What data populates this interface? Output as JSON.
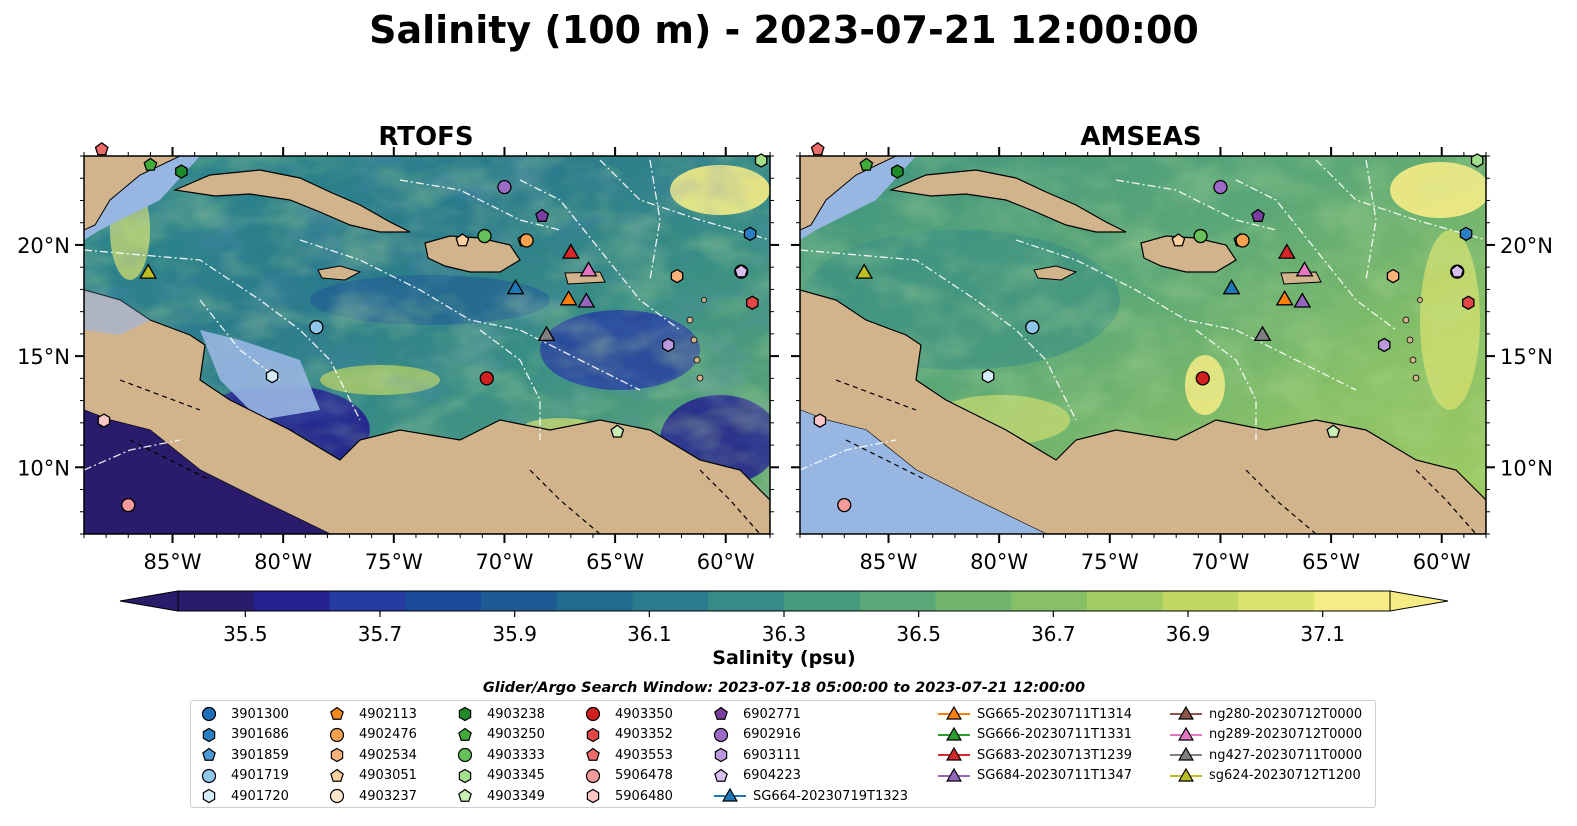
{
  "figure_title": "Salinity (100 m) - 2023-07-21 12:00:00",
  "panels": [
    {
      "title": "RTOFS"
    },
    {
      "title": "AMSEAS"
    }
  ],
  "chart_data": {
    "type": "heatmap",
    "variable": "Salinity",
    "colorbar": {
      "label": "Salinity (psu)",
      "ticks": [
        "35.5",
        "35.7",
        "35.9",
        "36.1",
        "36.3",
        "36.5",
        "36.7",
        "36.9",
        "37.1"
      ],
      "range": [
        35.4,
        37.2
      ],
      "extend": "both",
      "colors": [
        "#2a1b6b",
        "#25218e",
        "#263ba1",
        "#1b4a9a",
        "#1e5b94",
        "#226b8e",
        "#2a7b8b",
        "#368b86",
        "#46997f",
        "#5aa777",
        "#70b46e",
        "#87c067",
        "#a3cc62",
        "#c0d762",
        "#dce36e",
        "#f6ec85"
      ]
    },
    "x_ticks": [
      "85°W",
      "80°W",
      "75°W",
      "70°W",
      "65°W",
      "60°W"
    ],
    "y_ticks": [
      "10°N",
      "15°N",
      "20°N"
    ],
    "lon_range": [
      -89.0,
      -58.0
    ],
    "lat_range": [
      7.0,
      24.0
    ],
    "markers": [
      {
        "id": "3901686",
        "lon": -58.9,
        "lat": 20.5,
        "color": "#2a7fc2",
        "shape": "hexagon"
      },
      {
        "id": "4901719",
        "lon": -78.5,
        "lat": 16.3,
        "color": "#8ec7ea",
        "shape": "circle"
      },
      {
        "id": "4901720",
        "lon": -80.5,
        "lat": 14.1,
        "color": "#d4ecf7",
        "shape": "hexagon"
      },
      {
        "id": "4902113",
        "lon": -69.1,
        "lat": 20.2,
        "color": "#f28a1e",
        "shape": "pentagon"
      },
      {
        "id": "4902476",
        "lon": -69.0,
        "lat": 20.2,
        "color": "#f7a150",
        "shape": "circle"
      },
      {
        "id": "4902534",
        "lon": -62.2,
        "lat": 18.6,
        "color": "#f9b27a",
        "shape": "hexagon"
      },
      {
        "id": "4903051",
        "lon": -71.9,
        "lat": 20.2,
        "color": "#fbcfa0",
        "shape": "pentagon"
      },
      {
        "id": "4903237",
        "lon": -59.3,
        "lat": 18.8,
        "color": "#fde5cc",
        "shape": "circle"
      },
      {
        "id": "4903238",
        "lon": -84.6,
        "lat": 23.3,
        "color": "#1f8a2a",
        "shape": "hexagon"
      },
      {
        "id": "4903250",
        "lon": -86.0,
        "lat": 23.6,
        "color": "#43ab3a",
        "shape": "pentagon"
      },
      {
        "id": "4903333",
        "lon": -70.9,
        "lat": 20.4,
        "color": "#66c15a",
        "shape": "circle"
      },
      {
        "id": "4903345",
        "lon": -58.4,
        "lat": 23.8,
        "color": "#a3e08c",
        "shape": "hexagon"
      },
      {
        "id": "4903349",
        "lon": -64.9,
        "lat": 11.6,
        "color": "#c9f0b7",
        "shape": "pentagon"
      },
      {
        "id": "4903350",
        "lon": -70.8,
        "lat": 14.0,
        "color": "#d02020",
        "shape": "circle"
      },
      {
        "id": "4903352",
        "lon": -58.8,
        "lat": 17.4,
        "color": "#e34646",
        "shape": "hexagon"
      },
      {
        "id": "4903553",
        "lon": -88.2,
        "lat": 24.3,
        "color": "#ef6a6a",
        "shape": "pentagon"
      },
      {
        "id": "5906478",
        "lon": -87.0,
        "lat": 8.3,
        "color": "#f59a9a",
        "shape": "circle"
      },
      {
        "id": "5906480",
        "lon": -88.1,
        "lat": 12.1,
        "color": "#fcc6c6",
        "shape": "hexagon"
      },
      {
        "id": "6902771",
        "lon": -68.3,
        "lat": 21.3,
        "color": "#7b3fa0",
        "shape": "pentagon"
      },
      {
        "id": "6902916",
        "lon": -70.0,
        "lat": 22.6,
        "color": "#9c6bc6",
        "shape": "circle"
      },
      {
        "id": "6903111",
        "lon": -62.6,
        "lat": 15.5,
        "color": "#bb98db",
        "shape": "hexagon"
      },
      {
        "id": "6904223",
        "lon": -59.3,
        "lat": 18.8,
        "color": "#d8c0ee",
        "shape": "pentagon"
      },
      {
        "id": "SG664-20230719T1323",
        "lon": -69.5,
        "lat": 18.1,
        "color": "#1f77b4",
        "shape": "triangle"
      },
      {
        "id": "SG665-20230711T1314",
        "lon": -67.1,
        "lat": 17.6,
        "color": "#ff7f0e",
        "shape": "triangle"
      },
      {
        "id": "SG683-20230713T1239",
        "lon": -67.0,
        "lat": 19.7,
        "color": "#d62728",
        "shape": "triangle"
      },
      {
        "id": "SG684-20230711T1347",
        "lon": -66.3,
        "lat": 17.5,
        "color": "#9467bd",
        "shape": "triangle"
      },
      {
        "id": "ng289-20230712T0000",
        "lon": -66.2,
        "lat": 18.9,
        "color": "#e377c2",
        "shape": "triangle"
      },
      {
        "id": "ng427-20230711T0000",
        "lon": -68.1,
        "lat": 16.0,
        "color": "#7f7f7f",
        "shape": "triangle"
      },
      {
        "id": "sg624-20230712T1200",
        "lon": -86.1,
        "lat": 18.8,
        "color": "#bcbd22",
        "shape": "triangle"
      }
    ]
  },
  "legend": {
    "title": "Glider/Argo Search Window: 2023-07-18 05:00:00 to 2023-07-21 12:00:00",
    "columns": [
      [
        {
          "label": "3901300",
          "color": "#1f6fb8",
          "shape": "circle"
        },
        {
          "label": "3901686",
          "color": "#2a7fc2",
          "shape": "hexagon"
        },
        {
          "label": "3901859",
          "color": "#4a98d4",
          "shape": "pentagon"
        },
        {
          "label": "4901719",
          "color": "#8ec7ea",
          "shape": "circle"
        },
        {
          "label": "4901720",
          "color": "#d4ecf7",
          "shape": "hexagon"
        }
      ],
      [
        {
          "label": "4902113",
          "color": "#f28a1e",
          "shape": "pentagon"
        },
        {
          "label": "4902476",
          "color": "#f7a150",
          "shape": "circle"
        },
        {
          "label": "4902534",
          "color": "#f9b27a",
          "shape": "hexagon"
        },
        {
          "label": "4903051",
          "color": "#fbcfa0",
          "shape": "pentagon"
        },
        {
          "label": "4903237",
          "color": "#fde5cc",
          "shape": "circle"
        }
      ],
      [
        {
          "label": "4903238",
          "color": "#1f8a2a",
          "shape": "hexagon"
        },
        {
          "label": "4903250",
          "color": "#43ab3a",
          "shape": "pentagon"
        },
        {
          "label": "4903333",
          "color": "#66c15a",
          "shape": "circle"
        },
        {
          "label": "4903345",
          "color": "#a3e08c",
          "shape": "hexagon"
        },
        {
          "label": "4903349",
          "color": "#c9f0b7",
          "shape": "pentagon"
        }
      ],
      [
        {
          "label": "4903350",
          "color": "#d02020",
          "shape": "circle"
        },
        {
          "label": "4903352",
          "color": "#e34646",
          "shape": "hexagon"
        },
        {
          "label": "4903553",
          "color": "#ef6a6a",
          "shape": "pentagon"
        },
        {
          "label": "5906478",
          "color": "#f59a9a",
          "shape": "circle"
        },
        {
          "label": "5906480",
          "color": "#fcc6c6",
          "shape": "hexagon"
        }
      ],
      [
        {
          "label": "6902771",
          "color": "#7b3fa0",
          "shape": "pentagon"
        },
        {
          "label": "6902916",
          "color": "#9c6bc6",
          "shape": "circle"
        },
        {
          "label": "6903111",
          "color": "#bb98db",
          "shape": "hexagon"
        },
        {
          "label": "6904223",
          "color": "#d8c0ee",
          "shape": "pentagon"
        },
        {
          "label": "SG664-20230719T1323",
          "color": "#1f77b4",
          "shape": "triangle-line"
        }
      ],
      [
        {
          "label": "SG665-20230711T1314",
          "color": "#ff7f0e",
          "shape": "triangle-line"
        },
        {
          "label": "SG666-20230711T1331",
          "color": "#2ca02c",
          "shape": "triangle-line"
        },
        {
          "label": "SG683-20230713T1239",
          "color": "#d62728",
          "shape": "triangle-line"
        },
        {
          "label": "SG684-20230711T1347",
          "color": "#9467bd",
          "shape": "triangle-line"
        }
      ],
      [
        {
          "label": "ng280-20230712T0000",
          "color": "#8c564b",
          "shape": "triangle-line"
        },
        {
          "label": "ng289-20230712T0000",
          "color": "#e377c2",
          "shape": "triangle-line"
        },
        {
          "label": "ng427-20230711T0000",
          "color": "#7f7f7f",
          "shape": "triangle-line"
        },
        {
          "label": "sg624-20230712T1200",
          "color": "#bcbd22",
          "shape": "triangle-line"
        }
      ]
    ]
  }
}
